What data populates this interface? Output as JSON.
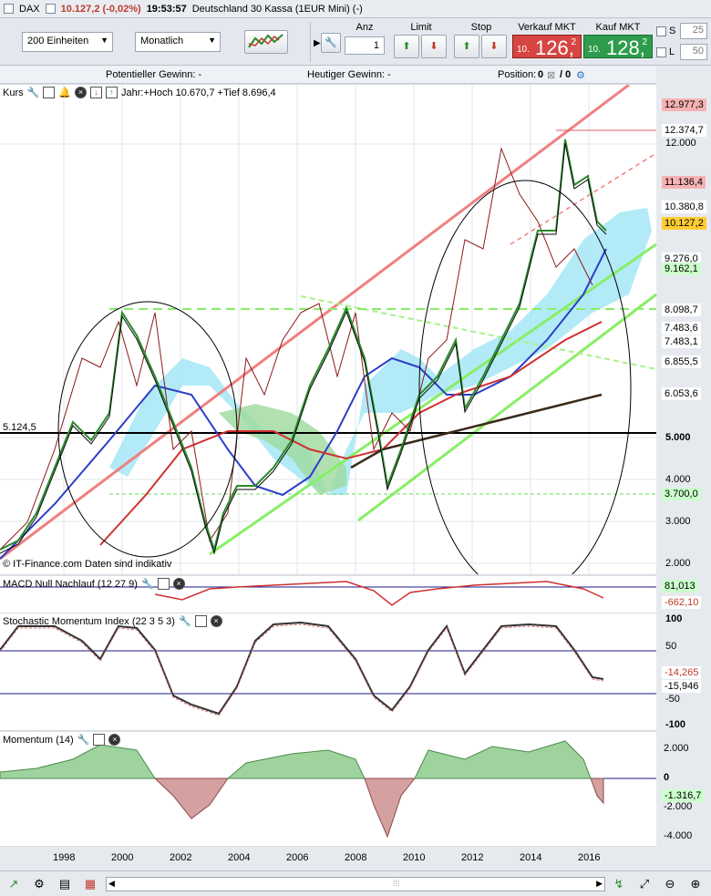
{
  "titlebar": {
    "symbol": "DAX",
    "price": "10.127,2 (-0,02%)",
    "time": "19:53:57",
    "name": "Deutschland 30 Kassa (1EUR Mini) (-)"
  },
  "toolbar": {
    "units": "200 Einheiten",
    "period": "Monatlich",
    "anz_label": "Anz",
    "anz_value": "1",
    "limit_label": "Limit",
    "stop_label": "Stop",
    "sell_label": "Verkauf MKT",
    "sell_small": "10.",
    "sell_big": "126,",
    "sell_sup": "2",
    "buy_label": "Kauf MKT",
    "buy_small": "10.",
    "buy_big": "128,",
    "buy_sup": "2",
    "s_label": "S",
    "s_value": "25",
    "l_label": "L",
    "l_value": "50"
  },
  "infobar": {
    "potential": "Potentieller Gewinn:  -",
    "today": "Heutiger Gewinn:  -",
    "position_label": "Position:",
    "position_value": "0",
    "position_sep": "/ 0"
  },
  "price_pane": {
    "title": "Kurs",
    "range": "Jahr:+Hoch 10.670,7 +Tief 8.696,4",
    "watermark": "© IT-Finance.com  Daten sind indikativ",
    "level_label": "5.124,5",
    "y_ticks": [
      "12.000",
      "5.000",
      "4.000",
      "3.000",
      "2.000"
    ],
    "tags": [
      {
        "text": "12.977,3",
        "color": "#f6b3b3"
      },
      {
        "text": "12.374,7",
        "color": "#ffffff"
      },
      {
        "text": "11.136,4",
        "color": "#f6b3b3"
      },
      {
        "text": "10.380,8",
        "color": "#ffffff"
      },
      {
        "text": "10.127,2",
        "color": "#ffcc33"
      },
      {
        "text": "9.276,0",
        "color": "#ffffff"
      },
      {
        "text": "9.162,1",
        "color": "#ccffcc"
      },
      {
        "text": "8.098,7",
        "color": "#ffffff"
      },
      {
        "text": "7.483,6",
        "color": "#ffffff"
      },
      {
        "text": "7.483,1",
        "color": "#ffffff"
      },
      {
        "text": "6.855,5",
        "color": "#ffffff"
      },
      {
        "text": "6.053,6",
        "color": "#ffffff"
      },
      {
        "text": "3.700,0",
        "color": "#ccffcc"
      }
    ]
  },
  "macd_pane": {
    "title": "MACD Null Nachlauf (12 27 9)",
    "tag_top": "81,013",
    "tag_bottom": "-662,10"
  },
  "stoch_pane": {
    "title": "Stochastic Momentum Index (22 3 5 3)",
    "y_ticks": [
      "100",
      "50",
      "-50",
      "-100"
    ],
    "tag1": "-14,265",
    "tag2": "-15,946"
  },
  "momentum_pane": {
    "title": "Momentum (14)",
    "y_ticks": [
      "2.000",
      "0",
      "-2.000",
      "-4.000"
    ],
    "tag": "-1.316,7"
  },
  "x_axis": [
    "1998",
    "2000",
    "2002",
    "2004",
    "2006",
    "2008",
    "2010",
    "2012",
    "2014",
    "2016"
  ]
}
